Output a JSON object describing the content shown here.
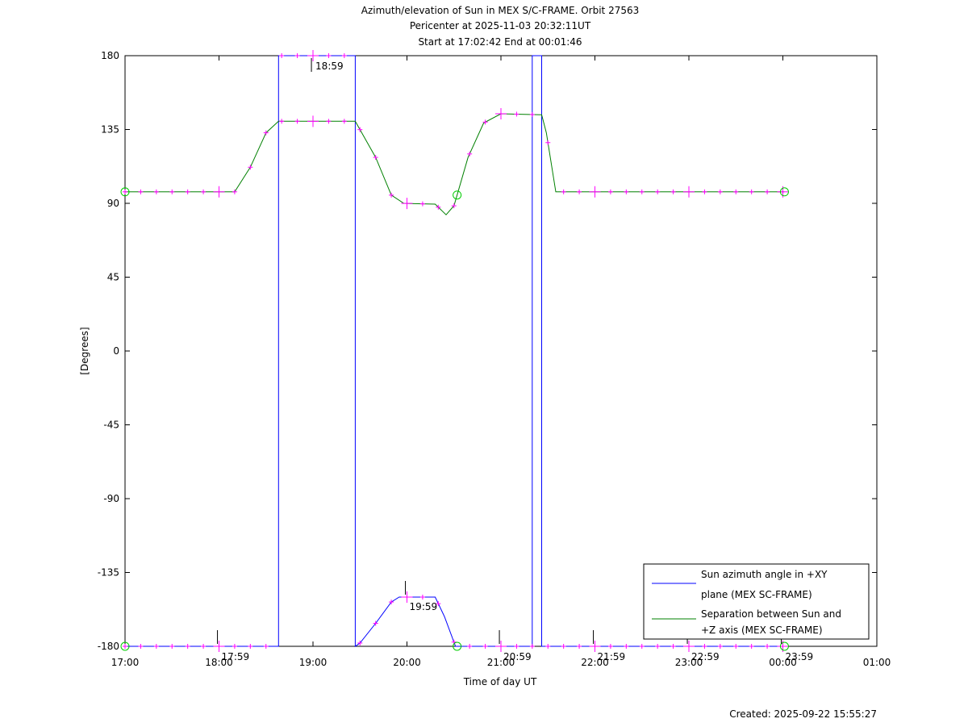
{
  "chart_data": {
    "type": "line",
    "title": [
      "Azimuth/elevation of Sun in MEX S/C-FRAME.  Orbit 27563",
      "Pericenter at 2025-11-03 20:32:11UT",
      "Start at 17:02:42 End at 00:01:46"
    ],
    "xlabel": "Time of day UT",
    "ylabel": "[Degrees]",
    "xticks": [
      "17:00",
      "18:00",
      "19:00",
      "20:00",
      "21:00",
      "22:00",
      "23:00",
      "00:00",
      "01:00"
    ],
    "yticks": [
      180,
      135,
      90,
      45,
      0,
      -45,
      -90,
      -135,
      -180
    ],
    "ylim": [
      -180,
      180
    ],
    "xlim": [
      "17:00",
      "01:00"
    ],
    "grid": false,
    "legend_position": "bottom-right",
    "series": [
      {
        "name": "Sun azimuth angle in +XY plane (MEX SC-FRAME)",
        "color": "#0000ff",
        "points": [
          [
            "17:00",
            -180
          ],
          [
            "18:38",
            -180
          ],
          [
            "18:38",
            180
          ],
          [
            "19:27",
            180
          ],
          [
            "19:27",
            -180
          ],
          [
            "19:30",
            -178
          ],
          [
            "19:40",
            -166
          ],
          [
            "19:50",
            -153
          ],
          [
            "19:55",
            -150
          ],
          [
            "20:18",
            -150
          ],
          [
            "20:24",
            -162
          ],
          [
            "20:31",
            -180
          ],
          [
            "21:20",
            -180
          ],
          [
            "21:20",
            180
          ],
          [
            "21:26",
            180
          ],
          [
            "21:26",
            -180
          ],
          [
            "00:01",
            -180
          ]
        ]
      },
      {
        "name": "Separation between Sun and +Z axis (MEX SC-FRAME)",
        "color": "#008000",
        "points": [
          [
            "17:00",
            97
          ],
          [
            "18:10",
            97
          ],
          [
            "18:20",
            112
          ],
          [
            "18:30",
            133
          ],
          [
            "18:38",
            140
          ],
          [
            "19:27",
            140
          ],
          [
            "19:40",
            118
          ],
          [
            "19:50",
            95
          ],
          [
            "19:58",
            90
          ],
          [
            "20:18",
            89.5
          ],
          [
            "20:25",
            83
          ],
          [
            "20:30",
            88.5
          ],
          [
            "20:39",
            118
          ],
          [
            "20:49",
            139
          ],
          [
            "21:00",
            144.6
          ],
          [
            "21:26",
            144
          ],
          [
            "21:29",
            133
          ],
          [
            "21:35",
            97
          ],
          [
            "00:01",
            97
          ]
        ]
      }
    ],
    "annotations": [
      {
        "time": "17:59",
        "value": -180,
        "label": "17:59"
      },
      {
        "time": "18:59",
        "value": 180,
        "label": "18:59"
      },
      {
        "time": "19:59",
        "value": -150,
        "label": "19:59"
      },
      {
        "time": "20:59",
        "value": -180,
        "label": "20:59"
      },
      {
        "time": "21:59",
        "value": -180,
        "label": "21:59"
      },
      {
        "time": "22:59",
        "value": -180,
        "label": "22:59"
      },
      {
        "time": "23:59",
        "value": -180,
        "label": "23:59"
      }
    ],
    "circle_markers": [
      "17:00",
      "20:32",
      "00:01"
    ],
    "marker_color": "#ff00ff",
    "circle_color": "#00cc00"
  },
  "footer": {
    "created": "Created: 2025-09-22 15:55:27"
  }
}
